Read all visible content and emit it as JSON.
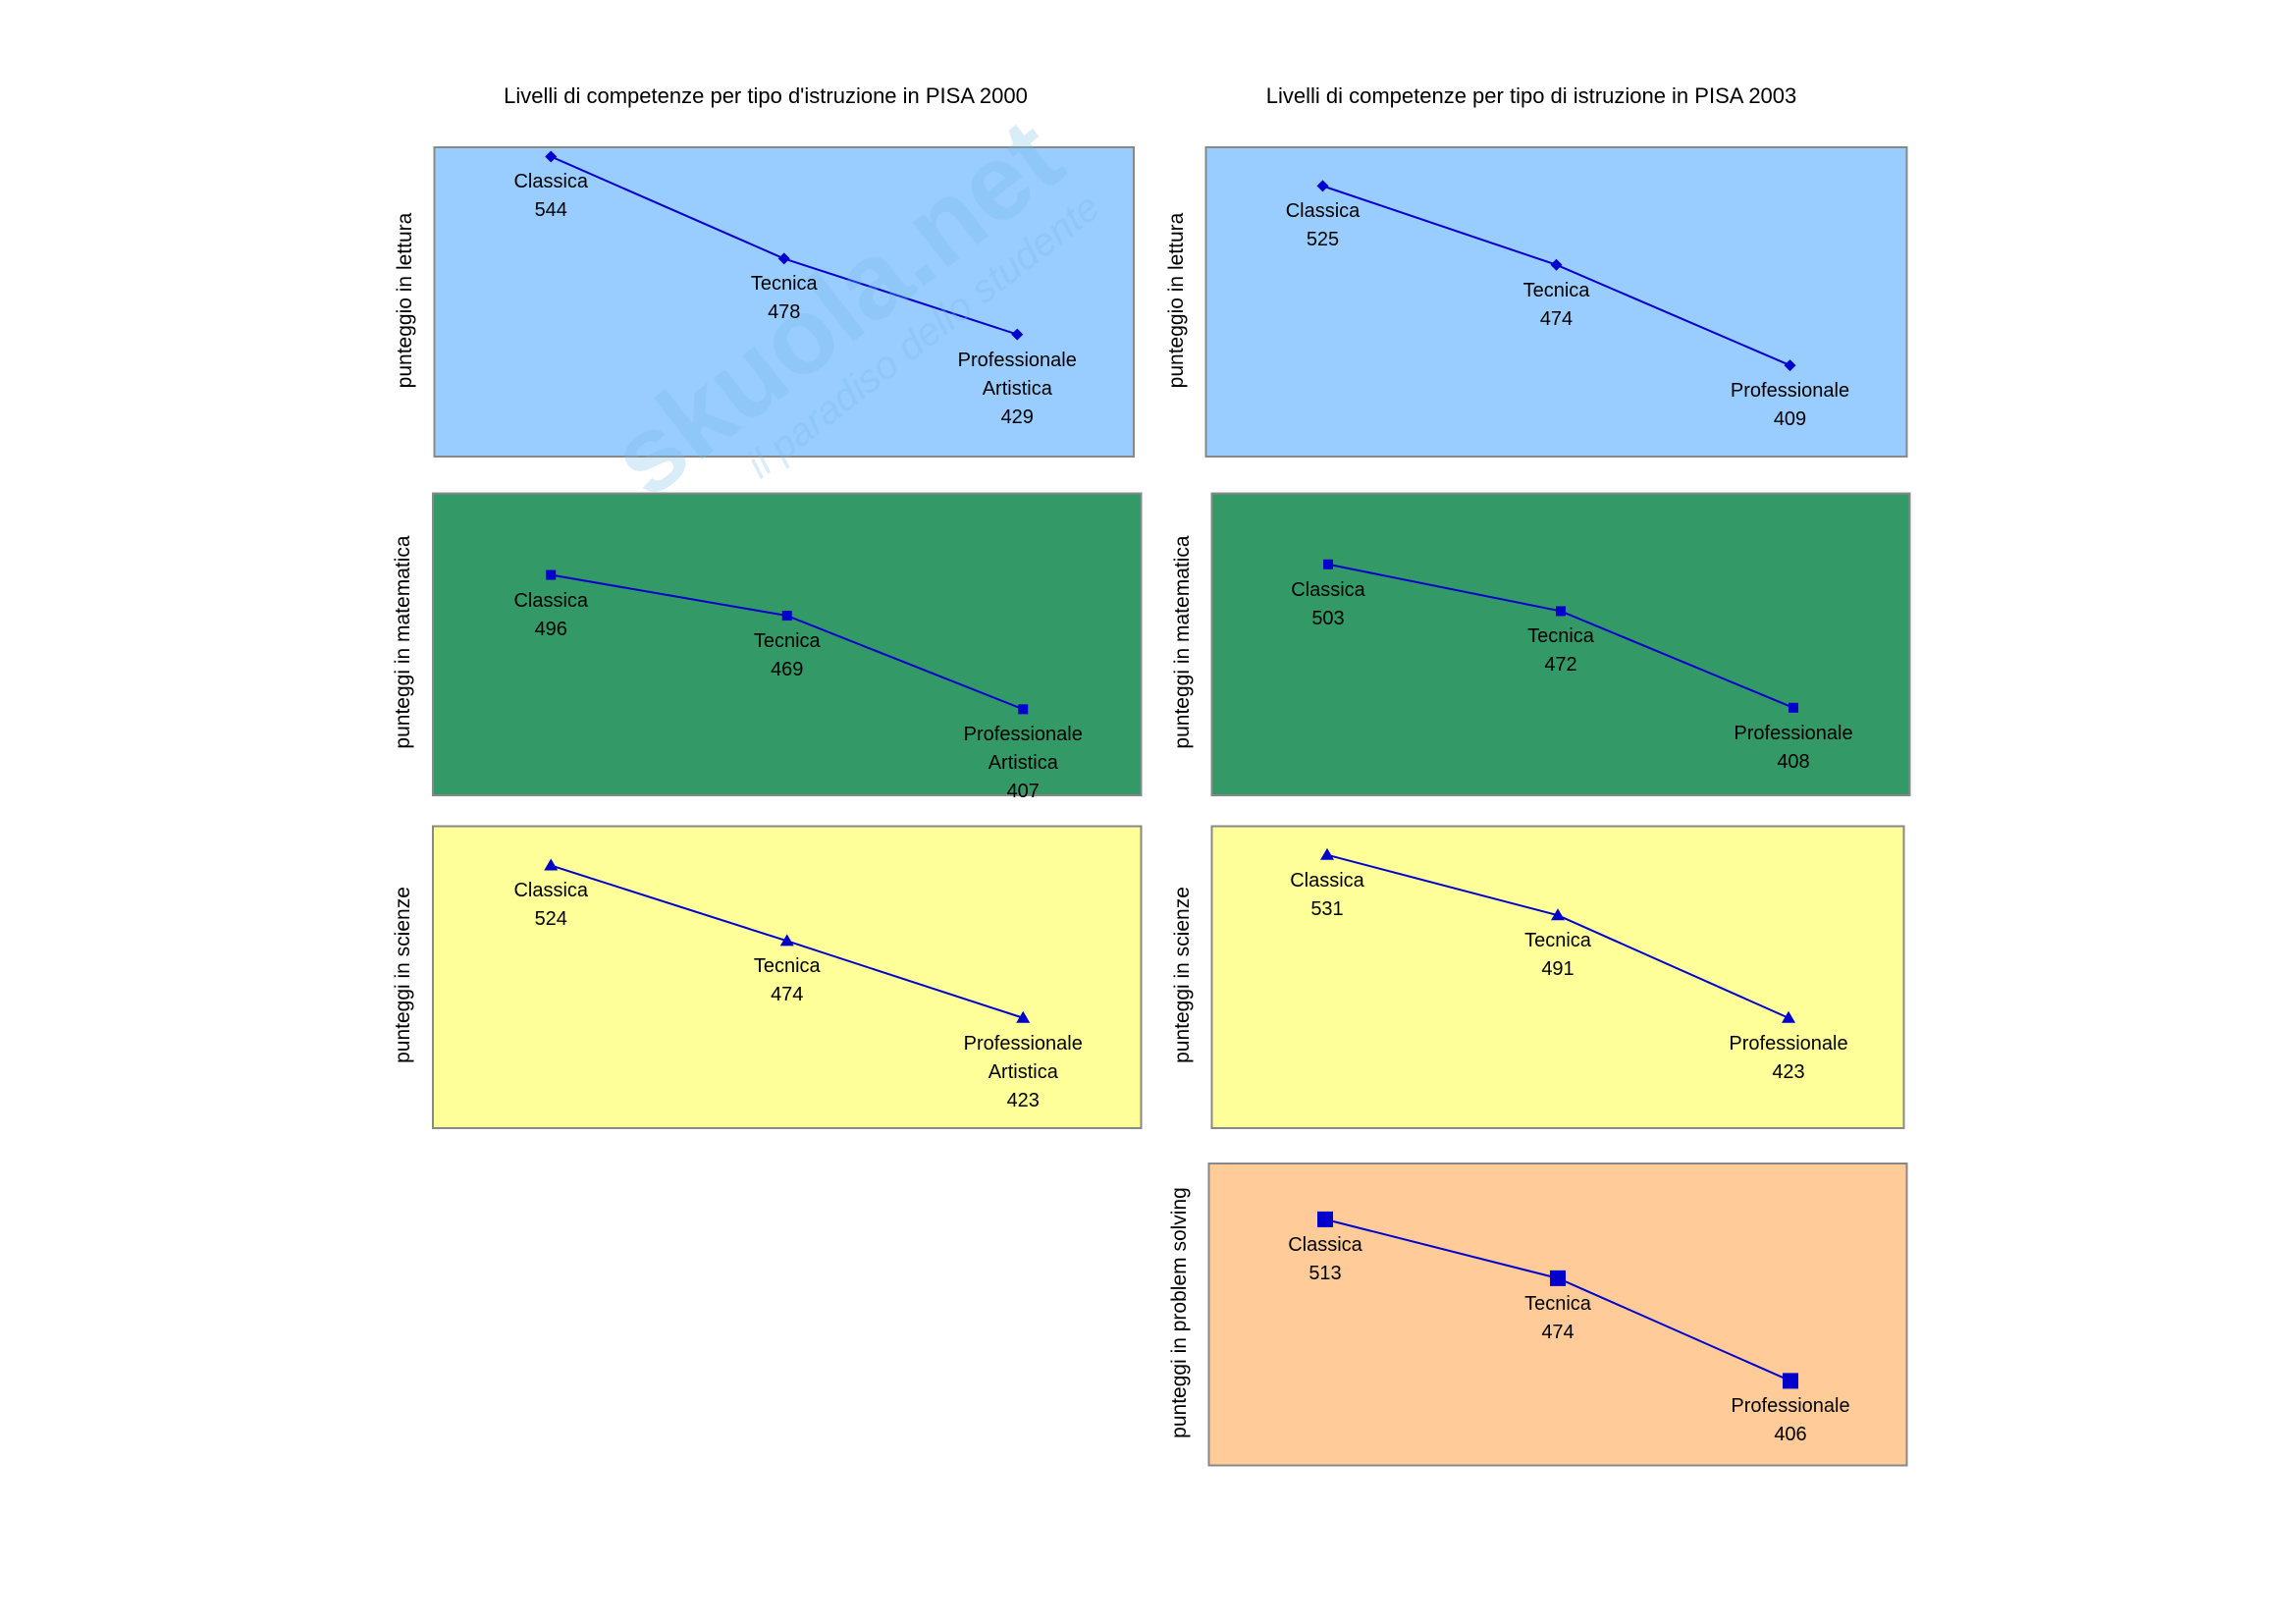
{
  "watermark": {
    "logo": "skuola.net",
    "tagline": "il paradiso dello studente"
  },
  "chart_data": [
    {
      "type": "line",
      "title": "Livelli di competenze per tipo d'istruzione in PISA 2000",
      "ylabel": "punteggio in lettura",
      "background": "#99ccff",
      "color": "#0000cc",
      "marker": "diamond",
      "categories": [
        "Classica",
        "Tecnica",
        "Professionale Artistica"
      ],
      "values": [
        544,
        478,
        429
      ],
      "ylim": [
        350,
        550
      ]
    },
    {
      "type": "line",
      "ylabel": "punteggi in matematica",
      "background": "#339966",
      "color": "#0000cc",
      "marker": "square",
      "categories": [
        "Classica",
        "Tecnica",
        "Professionale Artistica"
      ],
      "values": [
        496,
        469,
        407
      ],
      "ylim": [
        350,
        550
      ]
    },
    {
      "type": "line",
      "ylabel": "punteggi in scienze",
      "background": "#ffff99",
      "color": "#0000cc",
      "marker": "triangle",
      "categories": [
        "Classica",
        "Tecnica",
        "Professionale Artistica"
      ],
      "values": [
        524,
        474,
        423
      ],
      "ylim": [
        350,
        550
      ]
    },
    {
      "type": "line",
      "title": "Livelli di competenze per tipo di istruzione in PISA 2003",
      "ylabel": "punteggio in lettura",
      "background": "#99ccff",
      "color": "#0000cc",
      "marker": "diamond",
      "categories": [
        "Classica",
        "Tecnica",
        "Professionale"
      ],
      "values": [
        525,
        474,
        409
      ],
      "ylim": [
        350,
        550
      ]
    },
    {
      "type": "line",
      "ylabel": "punteggi in matematica",
      "background": "#339966",
      "color": "#0000cc",
      "marker": "square",
      "categories": [
        "Classica",
        "Tecnica",
        "Professionale"
      ],
      "values": [
        503,
        472,
        408
      ],
      "ylim": [
        350,
        550
      ]
    },
    {
      "type": "line",
      "ylabel": "punteggi in scienze",
      "background": "#ffff99",
      "color": "#0000cc",
      "marker": "triangle",
      "categories": [
        "Classica",
        "Tecnica",
        "Professionale"
      ],
      "values": [
        531,
        491,
        423
      ],
      "ylim": [
        350,
        550
      ]
    },
    {
      "type": "line",
      "ylabel": "punteggi in problem solving",
      "background": "#ffcc99",
      "color": "#0000cc",
      "marker": "bigsquare",
      "categories": [
        "Classica",
        "Tecnica",
        "Professionale"
      ],
      "values": [
        513,
        474,
        406
      ],
      "ylim": [
        350,
        550
      ]
    }
  ]
}
